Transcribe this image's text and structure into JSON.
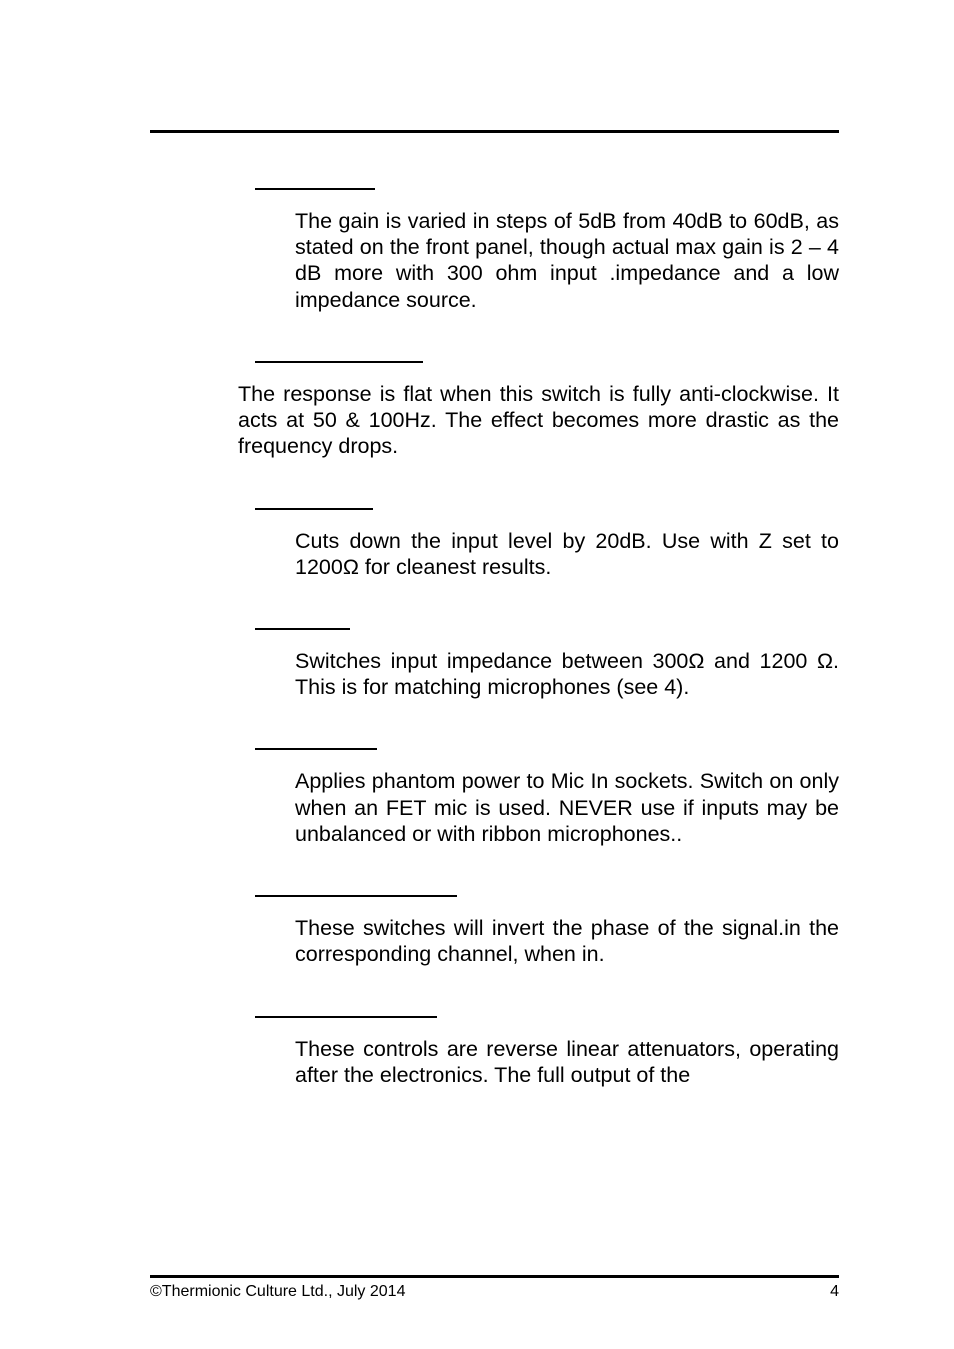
{
  "sections": {
    "gain": {
      "text": "The gain is varied in steps of 5dB from 40dB to 60dB, as stated on the front panel, though actual max gain is 2 – 4 dB more with 300 ohm input .impedance and a low impedance source."
    },
    "response": {
      "text": "The response is flat when this switch is fully anti-clockwise. It acts at 50 & 100Hz. The effect becomes more drastic as the frequency drops."
    },
    "cuts": {
      "text": "Cuts down the input level by 20dB. Use with Z set to 1200Ω for cleanest results."
    },
    "switches": {
      "text": "Switches input impedance between 300Ω and 1200 Ω. This is for matching microphones (see 4)."
    },
    "phantom": {
      "text": "Applies phantom power to Mic In sockets.  Switch on only when an FET mic is used. NEVER use if inputs may be unbalanced or with ribbon microphones.."
    },
    "phase": {
      "text": "These switches will invert the phase of the signal.in the corresponding channel, when in."
    },
    "attenuators": {
      "text": "These controls are reverse linear attenuators, operating after the electronics. The full output of the"
    }
  },
  "footer": {
    "copyright": "©Thermionic Culture Ltd., July 2014",
    "page_number": "4"
  }
}
